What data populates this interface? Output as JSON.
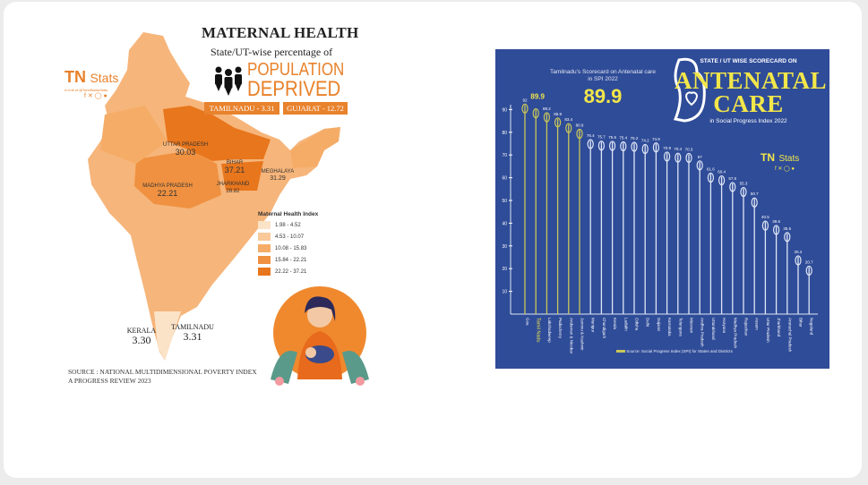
{
  "left_infographic": {
    "title": "MATERNAL HEALTH",
    "subtitle": "State/UT-wise percentage of",
    "headline_1": "POPULATION",
    "headline_2": "DEPRIVED",
    "badges": [
      "TAMILNADU - 3.31",
      "GUJARAT - 12.72"
    ],
    "brand": {
      "logo": "TN",
      "name": "Stats",
      "tagline": "TAMILNADU",
      "handle": "A Unit of @TamilNaduStats"
    },
    "map_labels": [
      {
        "state": "UTTAR PRADESH",
        "value": "30.03"
      },
      {
        "state": "BIHAR",
        "value": "37.21"
      },
      {
        "state": "JHARKHAND",
        "value": "28.82"
      },
      {
        "state": "MADHYA PRADESH",
        "value": "22.21"
      },
      {
        "state": "MEGHALAYA",
        "value": "31.29"
      },
      {
        "state": "KERALA",
        "value": "3.30"
      },
      {
        "state": "TAMILNADU",
        "value": "3.31"
      }
    ],
    "legend": {
      "title": "Maternal Health Index",
      "items": [
        {
          "range": "1.98 - 4.52",
          "color": "#fbe3c8"
        },
        {
          "range": "4.53 - 10.07",
          "color": "#f9c99a"
        },
        {
          "range": "10.08 - 15.83",
          "color": "#f5ac67"
        },
        {
          "range": "15.84 - 22.21",
          "color": "#ef9140"
        },
        {
          "range": "22.22 - 37.21",
          "color": "#e8761c"
        }
      ]
    },
    "source_1": "SOURCE : NATIONAL MULTIDIMENSIONAL POVERTY INDEX",
    "source_2": "A PROGRESS REVIEW 2023"
  },
  "right_infographic": {
    "title_1": "STATE / UT WISE SCORECARD ON",
    "title_2": "ANTENATAL",
    "title_3": "CARE",
    "title_4": "in Social Progress Index 2022",
    "scorecard_label": "Tamilnadu's Scorecard on Antenatal care in SPI 2022",
    "scorecard_value": "89.9",
    "brand": {
      "logo": "TN",
      "name": "Stats"
    },
    "source": "Source: Social Progress Index (SPI) for States and Districts",
    "colors": {
      "background": "#2f4c98",
      "highlight": "#c9c65a",
      "bar": "#dfe6f5",
      "accent": "#f2e64a"
    }
  },
  "chart_data": {
    "type": "bar",
    "title": "STATE / UT WISE SCORECARD ON ANTENATAL CARE in Social Progress Index 2022",
    "xlabel": "",
    "ylabel": "",
    "ylim": [
      0,
      95
    ],
    "yticks": [
      10,
      20,
      30,
      40,
      50,
      60,
      70,
      80,
      90
    ],
    "grid": false,
    "categories": [
      "Goa",
      "Tamil Nadu",
      "Lakshadweep",
      "Puducherry",
      "Andaman & Nicobar",
      "Jammu & Kashmir",
      "Manipur",
      "Chandigarh",
      "Kerala",
      "Ladakh",
      "Odisha",
      "Delhi",
      "Gujarat",
      "Karnataka",
      "Telangana",
      "Mizoram",
      "Andhra Pradesh",
      "Uttarakhand",
      "Haryana",
      "Madhya Pradesh",
      "Rajasthan",
      "Assam",
      "Uttar Pradesh",
      "Jharkhand",
      "Arunachal Pradesh",
      "Bihar",
      "Nagaland"
    ],
    "values": [
      92,
      89.9,
      88.2,
      85.9,
      83.4,
      80.9,
      76.4,
      75.7,
      75.6,
      75.4,
      75.2,
      74.2,
      74.9,
      70.9,
      70.4,
      70.3,
      67,
      61.6,
      60.4,
      57.5,
      55.3,
      50.7,
      40.5,
      38.6,
      35.5,
      25.2,
      20.7
    ],
    "highlighted_count": 6
  }
}
